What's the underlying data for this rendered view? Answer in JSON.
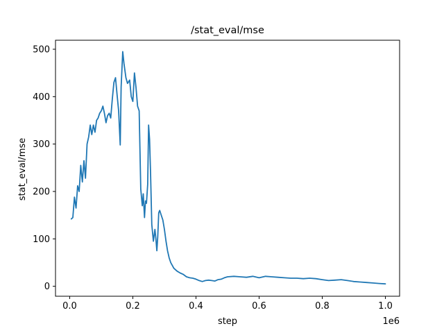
{
  "chart_data": {
    "type": "line",
    "title": "/stat_eval/mse",
    "xlabel": "step",
    "ylabel": "stat_eval/mse",
    "x_offset_label": "1e6",
    "xlim": [
      -0.045,
      1.045
    ],
    "ylim": [
      -21,
      519
    ],
    "x_ticks": [
      0.0,
      0.2,
      0.4,
      0.6,
      0.8,
      1.0
    ],
    "x_tick_labels": [
      "0.0",
      "0.2",
      "0.4",
      "0.6",
      "0.8",
      "1.0"
    ],
    "y_ticks": [
      0,
      100,
      200,
      300,
      400,
      500
    ],
    "y_tick_labels": [
      "0",
      "100",
      "200",
      "300",
      "400",
      "500"
    ],
    "grid": false,
    "line_color": "#1f77b4",
    "series": [
      {
        "x": [
          0.005,
          0.01,
          0.015,
          0.02,
          0.025,
          0.03,
          0.035,
          0.04,
          0.045,
          0.05,
          0.055,
          0.06,
          0.065,
          0.07,
          0.075,
          0.08,
          0.085,
          0.09,
          0.095,
          0.1,
          0.105,
          0.11,
          0.115,
          0.12,
          0.125,
          0.13,
          0.135,
          0.14,
          0.145,
          0.15,
          0.155,
          0.16,
          0.163,
          0.168,
          0.172,
          0.178,
          0.183,
          0.19,
          0.195,
          0.2,
          0.205,
          0.21,
          0.215,
          0.22,
          0.225,
          0.23,
          0.233,
          0.237,
          0.24,
          0.243,
          0.247,
          0.25,
          0.253,
          0.256,
          0.26,
          0.265,
          0.27,
          0.273,
          0.276,
          0.279,
          0.282,
          0.285,
          0.29,
          0.295,
          0.3,
          0.305,
          0.31,
          0.315,
          0.32,
          0.33,
          0.34,
          0.35,
          0.36,
          0.37,
          0.38,
          0.39,
          0.4,
          0.41,
          0.42,
          0.43,
          0.44,
          0.45,
          0.46,
          0.47,
          0.48,
          0.49,
          0.5,
          0.52,
          0.54,
          0.56,
          0.58,
          0.6,
          0.62,
          0.64,
          0.66,
          0.68,
          0.7,
          0.72,
          0.74,
          0.76,
          0.78,
          0.8,
          0.82,
          0.84,
          0.86,
          0.88,
          0.9,
          0.92,
          0.94,
          0.96,
          0.98,
          1.0
        ],
        "y": [
          142,
          145,
          188,
          165,
          212,
          200,
          255,
          220,
          265,
          228,
          300,
          315,
          340,
          320,
          340,
          325,
          350,
          355,
          365,
          370,
          380,
          365,
          345,
          360,
          365,
          355,
          395,
          430,
          440,
          405,
          370,
          298,
          420,
          495,
          470,
          440,
          428,
          435,
          400,
          390,
          450,
          420,
          380,
          370,
          205,
          170,
          195,
          145,
          180,
          175,
          215,
          340,
          310,
          240,
          130,
          95,
          120,
          100,
          75,
          105,
          155,
          160,
          150,
          140,
          120,
          95,
          75,
          60,
          50,
          38,
          32,
          28,
          25,
          20,
          18,
          17,
          15,
          12,
          10,
          12,
          13,
          12,
          11,
          14,
          15,
          18,
          20,
          21,
          20,
          19,
          21,
          18,
          21,
          20,
          19,
          18,
          17,
          17,
          16,
          17,
          16,
          14,
          12,
          13,
          14,
          12,
          10,
          9,
          8,
          7,
          6,
          5
        ]
      }
    ]
  }
}
